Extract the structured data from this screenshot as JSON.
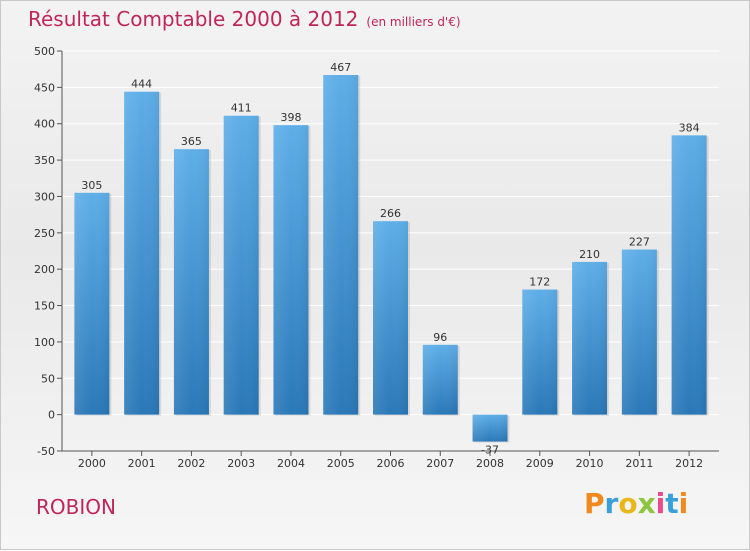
{
  "header": {
    "title": "Résultat Comptable 2000 à 2012",
    "subtitle": "(en milliers d'€)"
  },
  "footer": {
    "commune": "ROBION",
    "logo_text": "Proxiti"
  },
  "colors": {
    "title": "#c0255a",
    "bar_top": "#5eaee8",
    "bar_bottom": "#2a78b8",
    "logo_letters": [
      "#f08a1c",
      "#3aa0d8",
      "#e8b81a",
      "#8cc63e",
      "#e84a8a",
      "#3aa0d8",
      "#f08a1c"
    ]
  },
  "chart_data": {
    "type": "bar",
    "categories": [
      "2000",
      "2001",
      "2002",
      "2003",
      "2004",
      "2005",
      "2006",
      "2007",
      "2008",
      "2009",
      "2010",
      "2011",
      "2012"
    ],
    "values": [
      305,
      444,
      365,
      411,
      398,
      467,
      266,
      96,
      -37,
      172,
      210,
      227,
      384
    ],
    "ylim": [
      -50,
      500
    ],
    "yticks": [
      -50,
      0,
      50,
      100,
      150,
      200,
      250,
      300,
      350,
      400,
      450,
      500
    ],
    "grid": true,
    "xlabel": "",
    "ylabel": ""
  }
}
